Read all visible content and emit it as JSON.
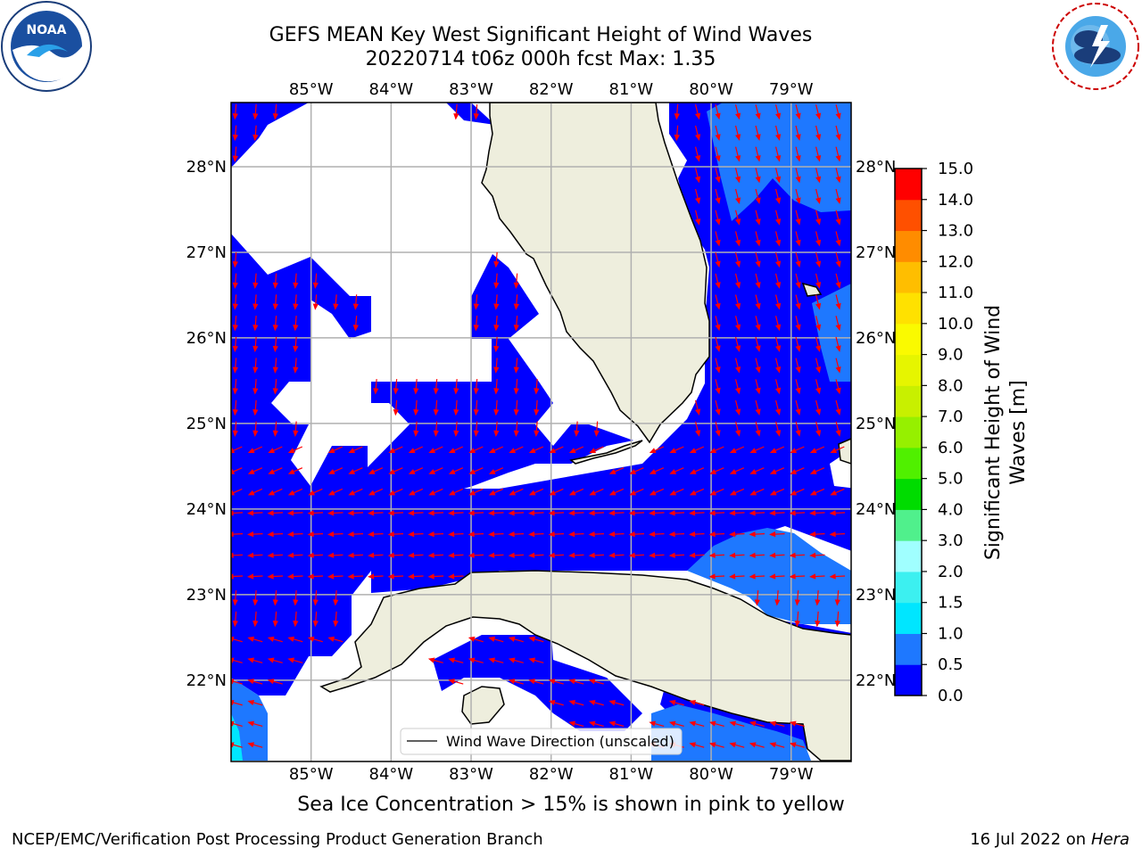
{
  "title": {
    "line1": "GEFS MEAN Key West Significant Height of Wind Waves",
    "line2": "20220714 t06z 000h fcst   Max: 1.35"
  },
  "logos": {
    "left": {
      "icon": "noaa-logo-icon",
      "text": "NOAA",
      "ring_text": "NATIONAL OCEANIC AND ATMOSPHERIC ADMINISTRATION · U.S. DEPARTMENT OF COMMERCE"
    },
    "right": {
      "icon": "nws-logo-icon",
      "ring_text": "NATIONAL WEATHER SERVICE"
    }
  },
  "map": {
    "lon_labels": [
      "85°W",
      "84°W",
      "83°W",
      "82°W",
      "81°W",
      "80°W",
      "79°W"
    ],
    "lat_labels": [
      "28°N",
      "27°N",
      "26°N",
      "25°N",
      "24°N",
      "23°N",
      "22°N"
    ],
    "lon_range": [
      -86.0,
      -78.25
    ],
    "lat_range": [
      21.05,
      28.75
    ],
    "colors": {
      "land": "#eeeedd",
      "sea_level0": "#0000ff",
      "sea_level1": "#1e78ff",
      "arrow": "#ff0000",
      "grid": "#b0b0b0"
    },
    "legend": {
      "label": "Wind Wave Direction (unscaled)"
    }
  },
  "chart_data": {
    "type": "heatmap",
    "title": "GEFS MEAN Key West Significant Height of Wind Waves",
    "subtitle": "20220714 t06z 000h fcst   Max: 1.35",
    "max_value": 1.35,
    "colorbar": {
      "label": "Significant Height of Wind Waves [m]",
      "ticks": [
        "0.0",
        "0.5",
        "1.0",
        "1.5",
        "2.0",
        "3.0",
        "4.0",
        "5.0",
        "6.0",
        "7.0",
        "8.0",
        "9.0",
        "10.0",
        "11.0",
        "12.0",
        "13.0",
        "14.0",
        "15.0"
      ],
      "colors": [
        "#0000ff",
        "#1e78ff",
        "#00e6ff",
        "#3cf0f0",
        "#a0ffff",
        "#50f08c",
        "#00dc00",
        "#50f000",
        "#96f000",
        "#c8f000",
        "#e6f500",
        "#fafa00",
        "#ffe100",
        "#ffbe00",
        "#ff8c00",
        "#ff5000",
        "#ff0000"
      ]
    }
  },
  "captions": {
    "sea_ice": "Sea Ice Concentration > 15% is shown in pink to yellow",
    "footer_left": "NCEP/EMC/Verification Post Processing Product Generation Branch",
    "footer_right_prefix": "16 Jul 2022 on ",
    "footer_right_host": "Hera"
  }
}
